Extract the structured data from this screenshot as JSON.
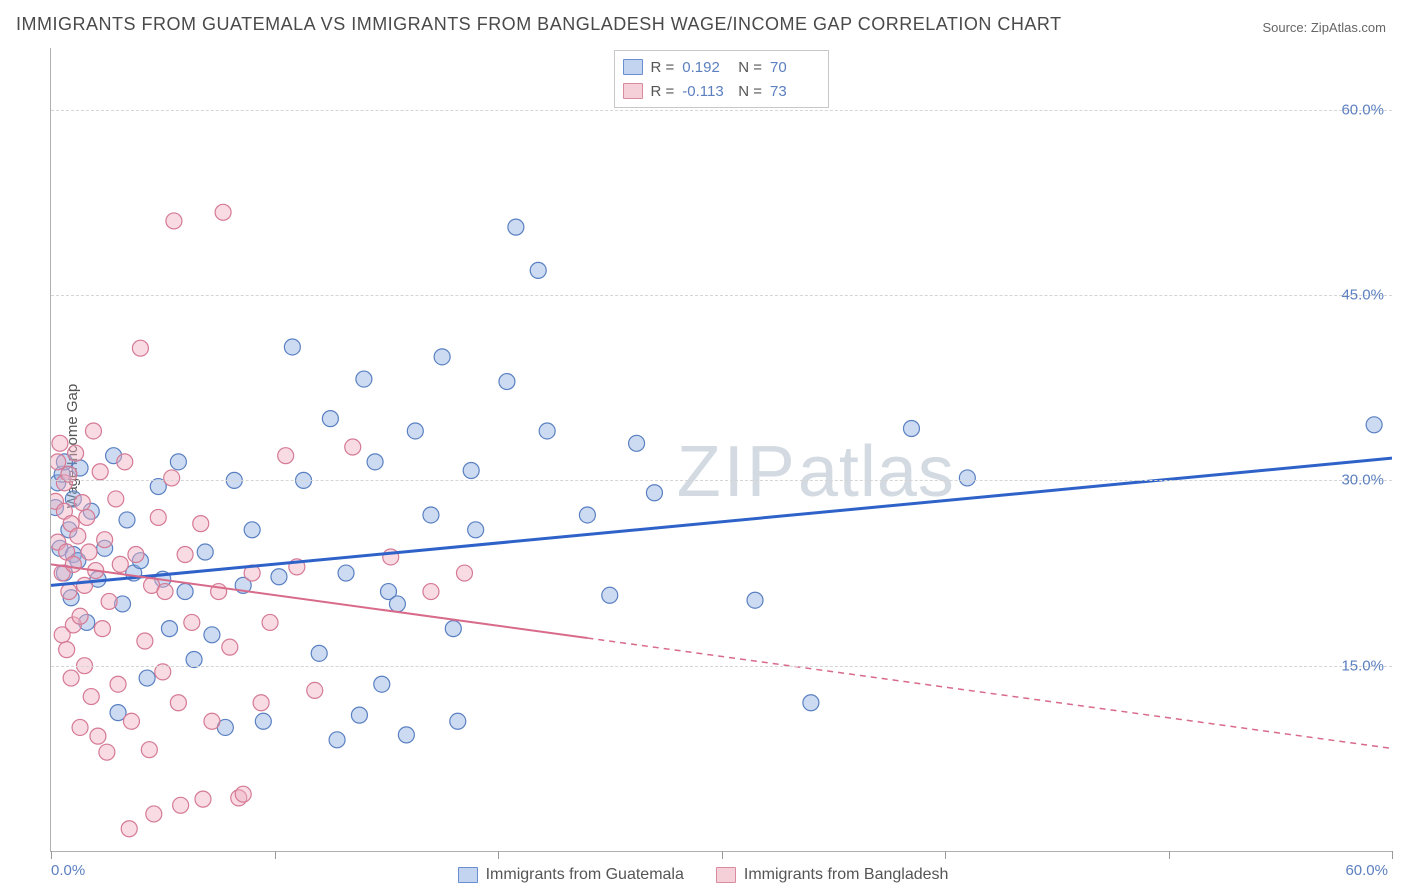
{
  "title": "IMMIGRANTS FROM GUATEMALA VS IMMIGRANTS FROM BANGLADESH WAGE/INCOME GAP CORRELATION CHART",
  "source_label": "Source: ",
  "source_name": "ZipAtlas.com",
  "y_axis_label": "Wage/Income Gap",
  "watermark": {
    "part1": "ZIP",
    "part2": "atlas"
  },
  "chart": {
    "type": "scatter",
    "xlim": [
      0,
      60
    ],
    "ylim": [
      0,
      65
    ],
    "y_ticks": [
      15,
      30,
      45,
      60
    ],
    "y_tick_labels": [
      "15.0%",
      "30.0%",
      "45.0%",
      "60.0%"
    ],
    "x_tick_corners": {
      "left": "0.0%",
      "right": "60.0%"
    },
    "x_tick_positions": [
      0,
      10,
      20,
      30,
      40,
      50,
      60
    ],
    "background_color": "#ffffff",
    "grid_color": "#d5d5d5",
    "axis_color": "#b0b0b0",
    "tick_font_color": "#5b7fbf",
    "marker_radius": 8,
    "marker_opacity": 0.45,
    "series": [
      {
        "name": "Immigrants from Guatemala",
        "color_fill": "#8fb0e0",
        "color_stroke": "#5a80c2",
        "r": "0.192",
        "n": "70",
        "trend": {
          "x1": 0,
          "y1": 21.5,
          "x2": 60,
          "y2": 31.8,
          "solid_until_x": 60,
          "color": "#2e62c9",
          "width": 3
        },
        "points": [
          [
            0.2,
            27.8
          ],
          [
            0.3,
            29.8
          ],
          [
            0.4,
            24.5
          ],
          [
            0.5,
            30.5
          ],
          [
            0.6,
            22.5
          ],
          [
            0.6,
            31.5
          ],
          [
            0.8,
            26
          ],
          [
            0.9,
            20.5
          ],
          [
            1.0,
            24
          ],
          [
            1.0,
            28.5
          ],
          [
            1.2,
            23.5
          ],
          [
            1.3,
            31
          ],
          [
            1.6,
            18.5
          ],
          [
            1.8,
            27.5
          ],
          [
            2.1,
            22
          ],
          [
            2.4,
            24.5
          ],
          [
            2.8,
            32
          ],
          [
            3.0,
            11.2
          ],
          [
            3.2,
            20
          ],
          [
            3.4,
            26.8
          ],
          [
            3.7,
            22.5
          ],
          [
            4.0,
            23.5
          ],
          [
            4.3,
            14
          ],
          [
            4.8,
            29.5
          ],
          [
            5.0,
            22
          ],
          [
            5.3,
            18
          ],
          [
            5.7,
            31.5
          ],
          [
            6.0,
            21
          ],
          [
            6.4,
            15.5
          ],
          [
            6.9,
            24.2
          ],
          [
            7.2,
            17.5
          ],
          [
            7.8,
            10
          ],
          [
            8.2,
            30
          ],
          [
            8.6,
            21.5
          ],
          [
            9.0,
            26
          ],
          [
            9.5,
            10.5
          ],
          [
            10.2,
            22.2
          ],
          [
            10.8,
            40.8
          ],
          [
            11.3,
            30
          ],
          [
            12,
            16
          ],
          [
            12.5,
            35
          ],
          [
            12.8,
            9
          ],
          [
            13.2,
            22.5
          ],
          [
            13.8,
            11
          ],
          [
            14,
            38.2
          ],
          [
            14.5,
            31.5
          ],
          [
            14.8,
            13.5
          ],
          [
            15.1,
            21
          ],
          [
            15.5,
            20
          ],
          [
            15.9,
            9.4
          ],
          [
            16.3,
            34
          ],
          [
            17,
            27.2
          ],
          [
            17.5,
            40
          ],
          [
            18,
            18
          ],
          [
            18.2,
            10.5
          ],
          [
            18.8,
            30.8
          ],
          [
            19,
            26
          ],
          [
            20.4,
            38
          ],
          [
            20.8,
            50.5
          ],
          [
            21.8,
            47
          ],
          [
            22.2,
            34
          ],
          [
            24,
            27.2
          ],
          [
            25,
            20.7
          ],
          [
            26.2,
            33
          ],
          [
            27,
            29
          ],
          [
            31.5,
            20.3
          ],
          [
            34,
            12
          ],
          [
            38.5,
            34.2
          ],
          [
            41,
            30.2
          ],
          [
            59.2,
            34.5
          ]
        ]
      },
      {
        "name": "Immigrants from Bangladesh",
        "color_fill": "#f0b0c0",
        "color_stroke": "#d57a94",
        "r": "-0.113",
        "n": "73",
        "trend": {
          "x1": 0,
          "y1": 23.2,
          "x2": 60,
          "y2": 8.3,
          "solid_until_x": 24,
          "color": "#d86a8a",
          "width": 2
        },
        "points": [
          [
            0.2,
            28.3
          ],
          [
            0.3,
            25
          ],
          [
            0.3,
            31.5
          ],
          [
            0.4,
            33
          ],
          [
            0.5,
            22.5
          ],
          [
            0.5,
            17.5
          ],
          [
            0.6,
            27.5
          ],
          [
            0.6,
            29.8
          ],
          [
            0.7,
            24.2
          ],
          [
            0.7,
            16.3
          ],
          [
            0.8,
            21
          ],
          [
            0.8,
            30.5
          ],
          [
            0.9,
            26.5
          ],
          [
            0.9,
            14
          ],
          [
            1.0,
            18.3
          ],
          [
            1.0,
            23.2
          ],
          [
            1.1,
            32.2
          ],
          [
            1.2,
            25.5
          ],
          [
            1.3,
            10
          ],
          [
            1.3,
            19
          ],
          [
            1.4,
            28.2
          ],
          [
            1.5,
            21.5
          ],
          [
            1.5,
            15
          ],
          [
            1.6,
            27
          ],
          [
            1.7,
            24.2
          ],
          [
            1.8,
            12.5
          ],
          [
            1.9,
            34
          ],
          [
            2.0,
            22.7
          ],
          [
            2.1,
            9.3
          ],
          [
            2.2,
            30.7
          ],
          [
            2.3,
            18
          ],
          [
            2.4,
            25.2
          ],
          [
            2.5,
            8
          ],
          [
            2.6,
            20.2
          ],
          [
            2.9,
            28.5
          ],
          [
            3.0,
            13.5
          ],
          [
            3.1,
            23.2
          ],
          [
            3.3,
            31.5
          ],
          [
            3.5,
            1.8
          ],
          [
            3.6,
            10.5
          ],
          [
            3.8,
            24
          ],
          [
            4.0,
            40.7
          ],
          [
            4.2,
            17
          ],
          [
            4.4,
            8.2
          ],
          [
            4.5,
            21.5
          ],
          [
            4.6,
            3
          ],
          [
            4.8,
            27
          ],
          [
            5.0,
            14.5
          ],
          [
            5.1,
            21
          ],
          [
            5.4,
            30.2
          ],
          [
            5.5,
            51
          ],
          [
            5.7,
            12
          ],
          [
            5.8,
            3.7
          ],
          [
            6.0,
            24
          ],
          [
            6.3,
            18.5
          ],
          [
            6.7,
            26.5
          ],
          [
            6.8,
            4.2
          ],
          [
            7.2,
            10.5
          ],
          [
            7.5,
            21
          ],
          [
            7.7,
            51.7
          ],
          [
            8.0,
            16.5
          ],
          [
            8.4,
            4.3
          ],
          [
            8.6,
            4.6
          ],
          [
            9.0,
            22.5
          ],
          [
            9.4,
            12
          ],
          [
            9.8,
            18.5
          ],
          [
            10.5,
            32
          ],
          [
            11,
            23
          ],
          [
            11.8,
            13
          ],
          [
            13.5,
            32.7
          ],
          [
            15.2,
            23.8
          ],
          [
            17,
            21
          ],
          [
            18.5,
            22.5
          ]
        ]
      }
    ],
    "legend_top": {
      "r_label": "R =",
      "n_label": "N ="
    }
  },
  "bottom_legend": {
    "series1": "Immigrants from Guatemala",
    "series2": "Immigrants from Bangladesh"
  }
}
